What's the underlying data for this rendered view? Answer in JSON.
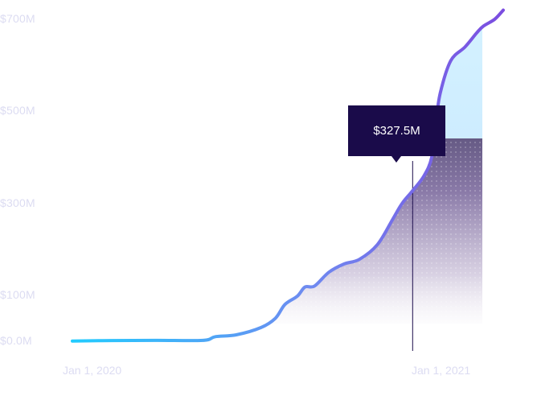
{
  "chart_data": {
    "type": "area",
    "y_ticks": [
      "$700M",
      "$500M",
      "$300M",
      "$100M",
      "$0.0M"
    ],
    "y_tick_values": [
      700,
      500,
      300,
      100,
      0
    ],
    "x_ticks": [
      "Jan 1, 2020",
      "Jan 1, 2021"
    ],
    "ylim": [
      0,
      700
    ],
    "unit": "$M",
    "series": [
      {
        "points": [
          [
            "2019-12-05",
            0.5
          ],
          [
            "2020-01-15",
            1.5
          ],
          [
            "2020-03-01",
            2
          ],
          [
            "2020-04-20",
            2
          ],
          [
            "2020-05-03",
            10
          ],
          [
            "2020-05-25",
            14
          ],
          [
            "2020-06-20",
            30
          ],
          [
            "2020-07-05",
            50
          ],
          [
            "2020-07-15",
            80
          ],
          [
            "2020-07-28",
            98
          ],
          [
            "2020-08-05",
            118
          ],
          [
            "2020-08-15",
            120
          ],
          [
            "2020-08-30",
            150
          ],
          [
            "2020-09-15",
            168
          ],
          [
            "2020-10-01",
            178
          ],
          [
            "2020-10-20",
            210
          ],
          [
            "2020-11-05",
            265
          ],
          [
            "2020-11-15",
            300
          ],
          [
            "2020-11-26",
            327.5
          ],
          [
            "2020-12-08",
            360
          ],
          [
            "2020-12-16",
            400
          ],
          [
            "2020-12-20",
            470
          ],
          [
            "2020-12-25",
            540
          ],
          [
            "2021-01-05",
            610
          ],
          [
            "2021-01-20",
            640
          ],
          [
            "2021-02-01",
            670
          ],
          [
            "2021-02-08",
            685
          ],
          [
            "2021-02-20",
            700
          ],
          [
            "2021-03-01",
            720
          ]
        ],
        "line_gradient": [
          "#22ccff",
          "#6f8af0",
          "#7b4de0"
        ]
      }
    ],
    "tooltip": {
      "date": "2020-11-26",
      "value": 327.5,
      "label": "$327.5M"
    },
    "colors": {
      "tooltip_bg": "#1a0b4a",
      "area_top": "#cdeeff",
      "area_dark": "#2e2a4e",
      "tick_text": "#dcdcf2"
    },
    "grid": false,
    "legend": "none"
  }
}
